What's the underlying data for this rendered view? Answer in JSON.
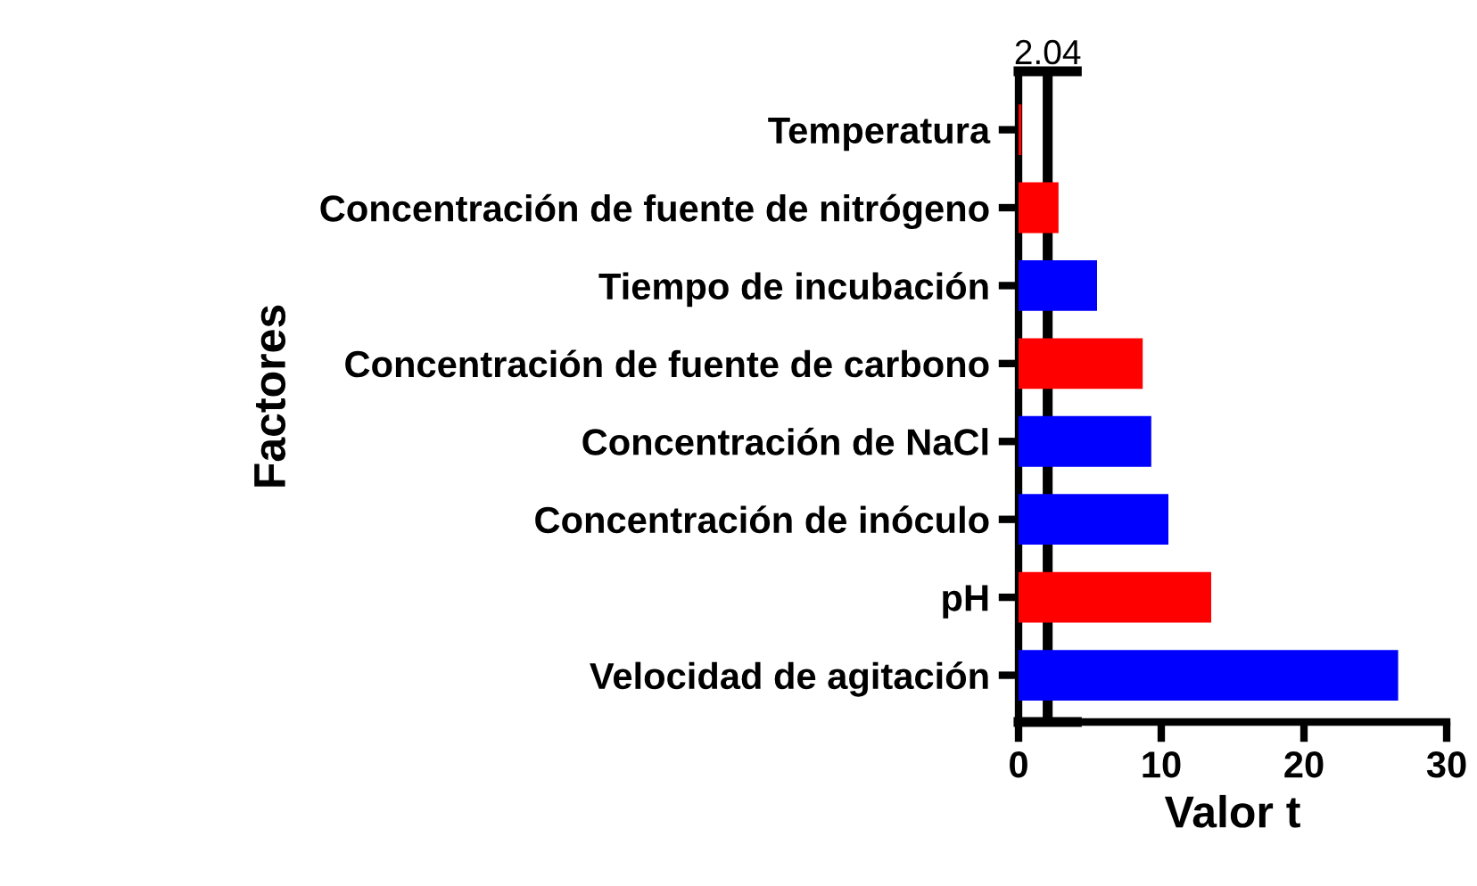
{
  "chart_data": {
    "type": "bar",
    "orientation": "horizontal",
    "xlabel": "Valor t",
    "ylabel": "Factores",
    "categories": [
      "Temperatura",
      "Concentración de fuente de nitrógeno",
      "Tiempo de incubación",
      "Concentración de fuente de carbono",
      "Concentración de NaCl",
      "Concentración de inóculo",
      "pH",
      "Velocidad de agitación"
    ],
    "values": [
      0.2,
      2.8,
      5.5,
      8.7,
      9.3,
      10.5,
      13.5,
      26.6
    ],
    "colors": [
      "#ff0000",
      "#ff0000",
      "#0000ff",
      "#ff0000",
      "#0000ff",
      "#0000ff",
      "#ff0000",
      "#0000ff"
    ],
    "xlim": [
      0,
      30
    ],
    "xticks": [
      0,
      10,
      20,
      30
    ],
    "ref_lines": [
      {
        "axis": "x",
        "value": 2.04,
        "label": "2.04",
        "color": "#000000"
      }
    ],
    "grid": false,
    "legend": false
  }
}
